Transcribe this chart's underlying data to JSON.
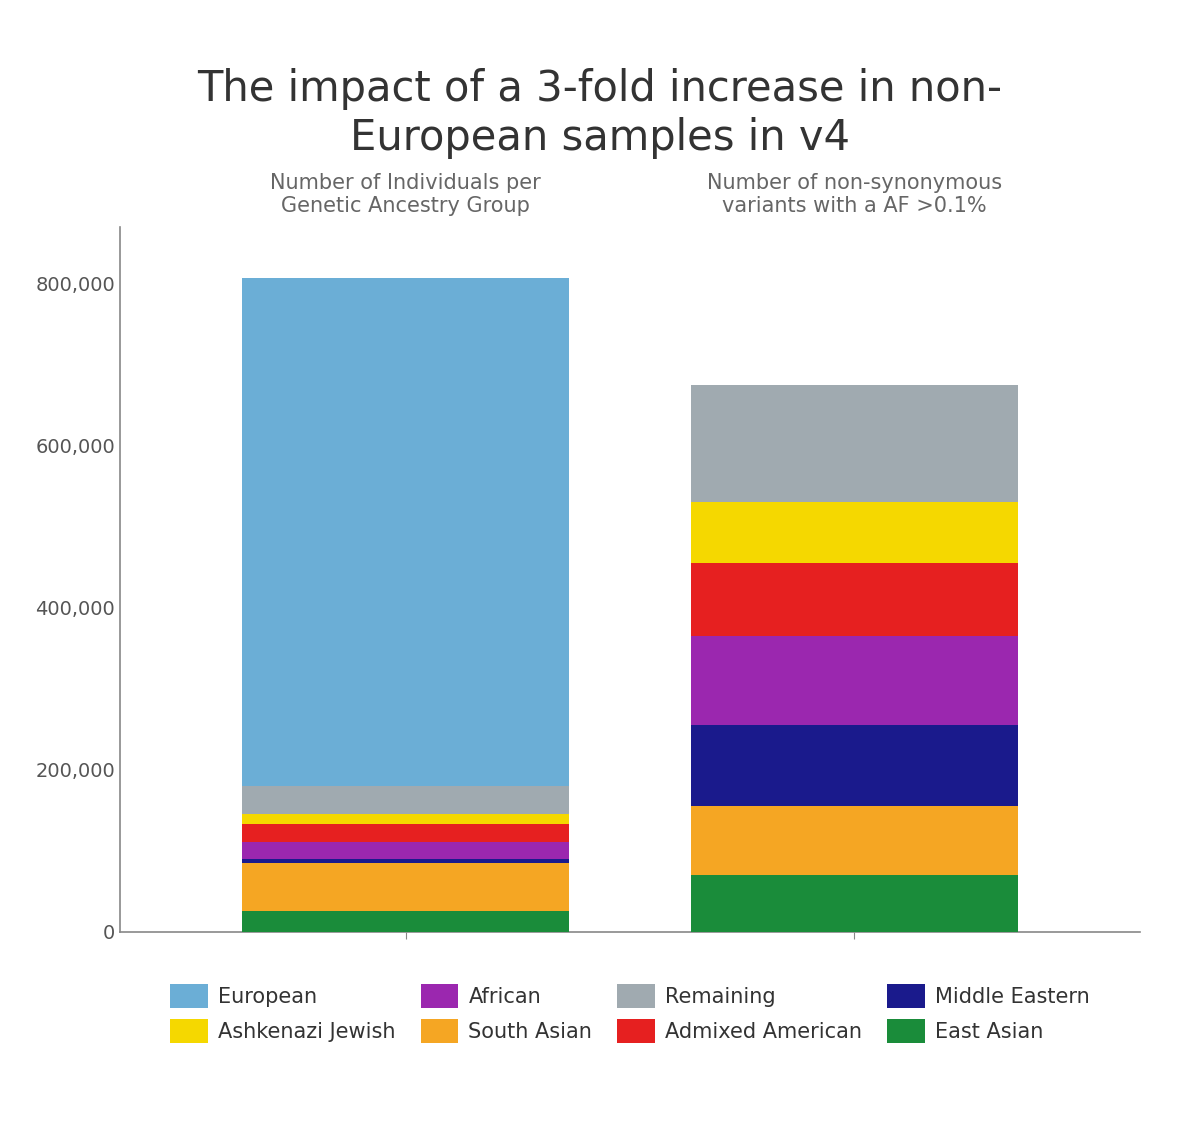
{
  "title": "The impact of a 3-fold increase in non-\nEuropean samples in v4",
  "subtitle_left": "Number of Individuals per\nGenetic Ancestry Group",
  "subtitle_right": "Number of non-synonymous\nvariants with a AF >0.1%",
  "groups": [
    {
      "label": "East Asian",
      "color": "#1a8c3a",
      "values": [
        25000,
        70000
      ]
    },
    {
      "label": "South Asian",
      "color": "#f5a623",
      "values": [
        60000,
        85000
      ]
    },
    {
      "label": "Middle Eastern",
      "color": "#1a1a8c",
      "values": [
        4000,
        100000
      ]
    },
    {
      "label": "African",
      "color": "#9b27af",
      "values": [
        22000,
        110000
      ]
    },
    {
      "label": "Admixed American",
      "color": "#e62020",
      "values": [
        22000,
        90000
      ]
    },
    {
      "label": "Ashkenazi Jewish",
      "color": "#f5d800",
      "values": [
        12000,
        75000
      ]
    },
    {
      "label": "Remaining",
      "color": "#a0aab0",
      "values": [
        35000,
        145000
      ]
    },
    {
      "label": "European",
      "color": "#6baed6",
      "values": [
        627000,
        0
      ]
    }
  ],
  "ylim": [
    0,
    870000
  ],
  "yticks": [
    0,
    200000,
    400000,
    600000,
    800000
  ],
  "bar_width": 0.32,
  "bar_positions": [
    0.28,
    0.72
  ],
  "xlim": [
    0,
    1
  ],
  "background_color": "#ffffff",
  "title_fontsize": 30,
  "subtitle_fontsize": 15,
  "tick_fontsize": 14,
  "legend_fontsize": 15,
  "legend_order": [
    [
      "European",
      "#6baed6"
    ],
    [
      "Ashkenazi Jewish",
      "#f5d800"
    ],
    [
      "African",
      "#9b27af"
    ],
    [
      "South Asian",
      "#f5a623"
    ],
    [
      "Remaining",
      "#a0aab0"
    ],
    [
      "Admixed American",
      "#e62020"
    ],
    [
      "Middle Eastern",
      "#1a1a8c"
    ],
    [
      "East Asian",
      "#1a8c3a"
    ]
  ]
}
